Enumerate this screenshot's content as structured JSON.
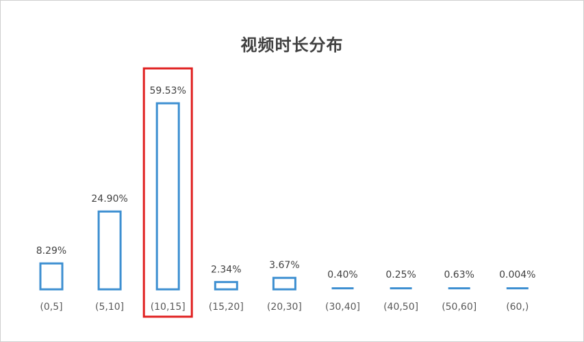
{
  "chart_data": {
    "type": "bar",
    "title": "视频时长分布",
    "categories": [
      "(0,5]",
      "(5,10]",
      "(10,15]",
      "(15,20]",
      "(20,30]",
      "(30,40]",
      "(40,50]",
      "(50,60]",
      "(60,)"
    ],
    "values": [
      8.29,
      24.9,
      59.53,
      2.34,
      3.67,
      0.4,
      0.25,
      0.63,
      0.004
    ],
    "data_labels": [
      "8.29%",
      "24.90%",
      "59.53%",
      "2.34%",
      "3.67%",
      "0.40%",
      "0.25%",
      "0.63%",
      "0.004%"
    ],
    "unit": "%",
    "ylim": [
      0,
      59.53
    ],
    "grid": false,
    "highlighted_category": "(10,15]",
    "bar_color": "#3d8fd1",
    "highlight_color": "#e02020",
    "label_color": "#404040"
  }
}
